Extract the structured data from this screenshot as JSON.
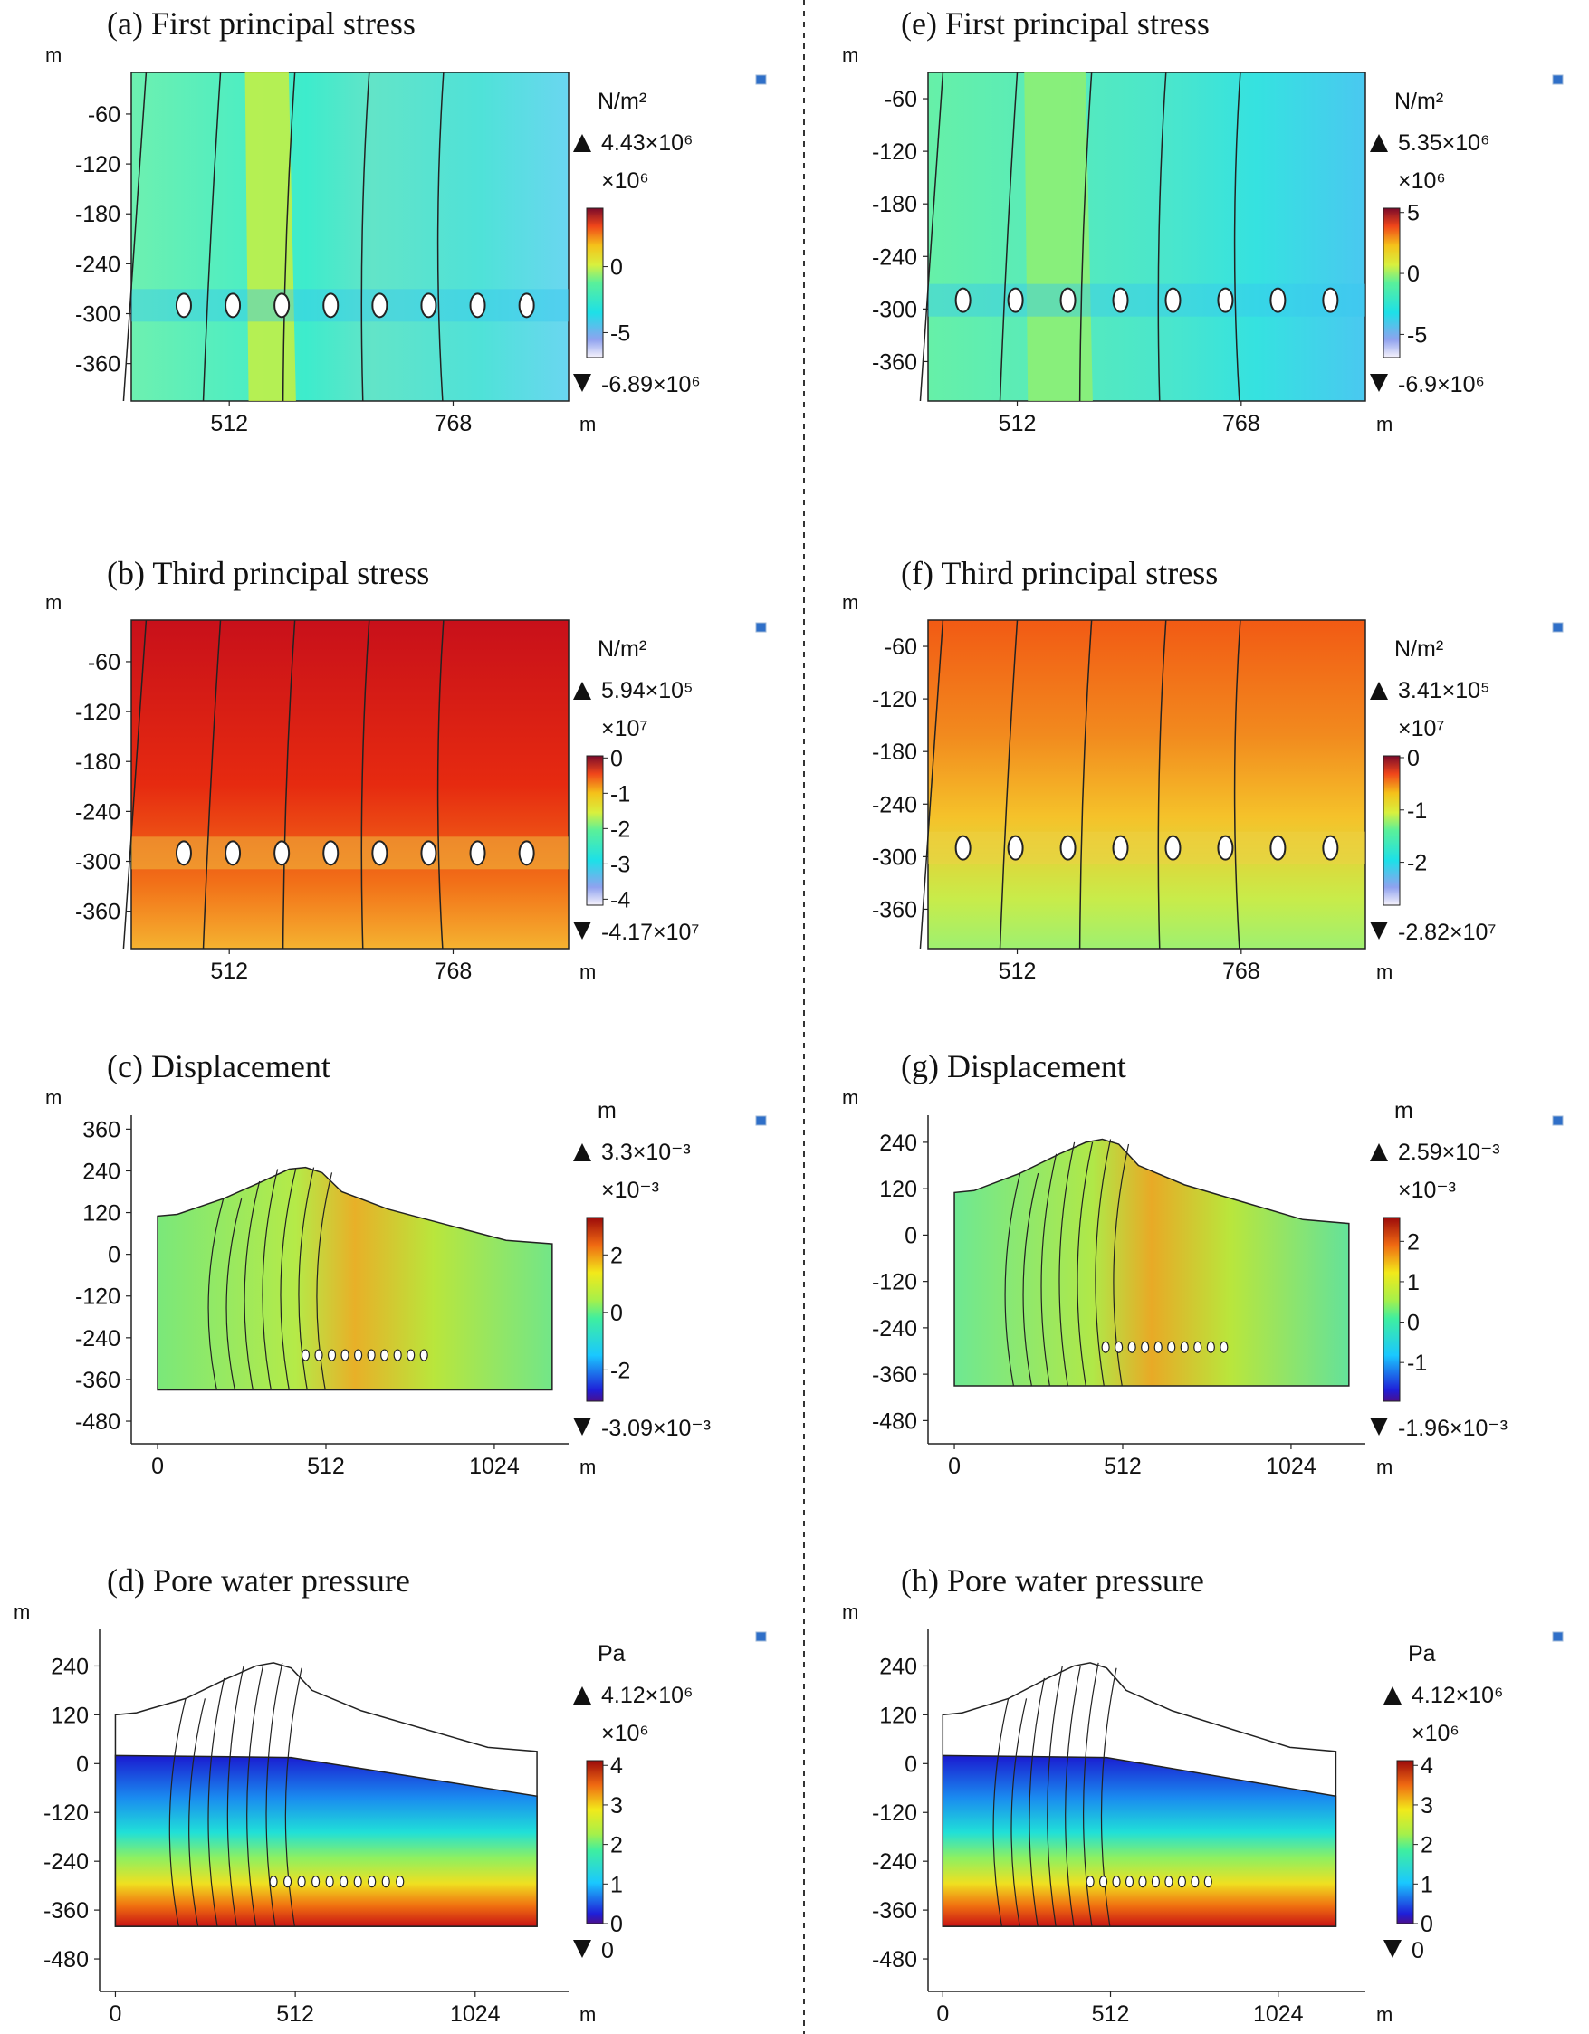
{
  "chart_data": [
    {
      "id": "a",
      "type": "heatmap",
      "title": "(a) First principal stress",
      "axis_unit": "m",
      "unit": "N/m²",
      "yticks": [
        -60,
        -120,
        -180,
        -240,
        -300,
        -360
      ],
      "ylim": [
        -405,
        -10
      ],
      "xticks": [
        512,
        768
      ],
      "xlim": [
        400,
        900
      ],
      "colorbar": {
        "multiplier": "×10⁶",
        "ticks": [
          0,
          -5
        ],
        "range": [
          -6.89,
          4.43
        ],
        "max_label": "4.43×10⁶",
        "min_label": "-6.89×10⁶"
      },
      "openings_x": [
        460,
        516,
        572,
        628,
        684,
        740,
        796,
        852
      ],
      "openings_y": -290,
      "colormap": "rainbow-light"
    },
    {
      "id": "e",
      "type": "heatmap",
      "title": "(e) First principal stress",
      "axis_unit": "m",
      "unit": "N/m²",
      "yticks": [
        -60,
        -120,
        -180,
        -240,
        -300,
        -360
      ],
      "ylim": [
        -405,
        -30
      ],
      "xticks": [
        512,
        768
      ],
      "xlim": [
        410,
        910
      ],
      "colorbar": {
        "multiplier": "×10⁶",
        "ticks": [
          5,
          0,
          -5
        ],
        "range": [
          -6.9,
          5.35
        ],
        "max_label": "5.35×10⁶",
        "min_label": "-6.9×10⁶"
      },
      "openings_x": [
        450,
        510,
        570,
        630,
        690,
        750,
        810,
        870
      ],
      "openings_y": -290,
      "colormap": "rainbow-light"
    },
    {
      "id": "b",
      "type": "heatmap",
      "title": "(b) Third principal stress",
      "axis_unit": "m",
      "unit": "N/m²",
      "yticks": [
        -60,
        -120,
        -180,
        -240,
        -300,
        -360
      ],
      "ylim": [
        -405,
        -10
      ],
      "xticks": [
        512,
        768
      ],
      "xlim": [
        400,
        900
      ],
      "colorbar": {
        "multiplier": "×10⁷",
        "ticks": [
          0,
          -1,
          -2,
          -3,
          -4
        ],
        "range": [
          -4.17,
          0.0594
        ],
        "max_label": "5.94×10⁵",
        "min_label": "-4.17×10⁷"
      },
      "openings_x": [
        460,
        516,
        572,
        628,
        684,
        740,
        796,
        852
      ],
      "openings_y": -290,
      "colormap": "rainbow-light"
    },
    {
      "id": "f",
      "type": "heatmap",
      "title": "(f) Third principal stress",
      "axis_unit": "m",
      "unit": "N/m²",
      "yticks": [
        -60,
        -120,
        -180,
        -240,
        -300,
        -360
      ],
      "ylim": [
        -405,
        -30
      ],
      "xticks": [
        512,
        768
      ],
      "xlim": [
        410,
        910
      ],
      "colorbar": {
        "multiplier": "×10⁷",
        "ticks": [
          0,
          -1,
          -2
        ],
        "range": [
          -2.82,
          0.0341
        ],
        "max_label": "3.41×10⁵",
        "min_label": "-2.82×10⁷"
      },
      "openings_x": [
        450,
        510,
        570,
        630,
        690,
        750,
        810,
        870
      ],
      "openings_y": -290,
      "colormap": "rainbow-light"
    },
    {
      "id": "c",
      "type": "heatmap",
      "title": "(c) Displacement",
      "axis_unit": "m",
      "unit": "m",
      "yticks": [
        360,
        240,
        120,
        0,
        -120,
        -240,
        -360,
        -480
      ],
      "ylim": [
        -545,
        400
      ],
      "xticks": [
        0,
        512,
        1024
      ],
      "xlim": [
        -80,
        1250
      ],
      "colorbar": {
        "multiplier": "×10⁻³",
        "ticks": [
          2,
          0,
          -2
        ],
        "range": [
          -3.09,
          3.3
        ],
        "max_label": "3.3×10⁻³",
        "min_label": "-3.09×10⁻³"
      },
      "surface": [
        [
          0,
          110
        ],
        [
          60,
          115
        ],
        [
          200,
          160
        ],
        [
          320,
          210
        ],
        [
          400,
          245
        ],
        [
          450,
          250
        ],
        [
          500,
          235
        ],
        [
          560,
          180
        ],
        [
          700,
          130
        ],
        [
          900,
          80
        ],
        [
          1060,
          40
        ],
        [
          1200,
          30
        ]
      ],
      "domain_bottom": -390,
      "domain_x": [
        0,
        1200
      ],
      "openings_x": [
        450,
        490,
        530,
        570,
        610,
        650,
        690,
        730,
        770,
        810
      ],
      "openings_y": -290,
      "colormap": "rainbow"
    },
    {
      "id": "g",
      "type": "heatmap",
      "title": "(g) Displacement",
      "axis_unit": "m",
      "unit": "m",
      "yticks": [
        240,
        120,
        0,
        -120,
        -240,
        -360,
        -480
      ],
      "ylim": [
        -540,
        310
      ],
      "xticks": [
        0,
        512,
        1024
      ],
      "xlim": [
        -80,
        1250
      ],
      "colorbar": {
        "multiplier": "×10⁻³",
        "ticks": [
          2,
          1,
          0,
          -1
        ],
        "range": [
          -1.96,
          2.59
        ],
        "max_label": "2.59×10⁻³",
        "min_label": "-1.96×10⁻³"
      },
      "surface": [
        [
          0,
          110
        ],
        [
          60,
          115
        ],
        [
          200,
          160
        ],
        [
          320,
          210
        ],
        [
          400,
          240
        ],
        [
          450,
          248
        ],
        [
          500,
          235
        ],
        [
          560,
          180
        ],
        [
          700,
          130
        ],
        [
          900,
          80
        ],
        [
          1060,
          40
        ],
        [
          1200,
          30
        ]
      ],
      "domain_bottom": -390,
      "domain_x": [
        0,
        1200
      ],
      "openings_x": [
        460,
        500,
        540,
        580,
        620,
        660,
        700,
        740,
        780,
        820
      ],
      "openings_y": -290,
      "colormap": "rainbow"
    },
    {
      "id": "d",
      "type": "heatmap",
      "title": "(d) Pore water pressure",
      "axis_unit": "m",
      "unit": "Pa",
      "yticks": [
        240,
        120,
        0,
        -120,
        -240,
        -360,
        -480
      ],
      "ylim": [
        -560,
        330
      ],
      "xticks": [
        0,
        512,
        1024
      ],
      "xlim": [
        -45,
        1290
      ],
      "colorbar": {
        "multiplier": "×10⁶",
        "ticks": [
          4,
          3,
          2,
          1,
          0
        ],
        "range": [
          0,
          4.12
        ],
        "max_label": "4.12×10⁶",
        "min_label": "0"
      },
      "surface": [
        [
          0,
          120
        ],
        [
          60,
          125
        ],
        [
          200,
          160
        ],
        [
          320,
          210
        ],
        [
          400,
          240
        ],
        [
          450,
          248
        ],
        [
          500,
          235
        ],
        [
          560,
          180
        ],
        [
          700,
          130
        ],
        [
          900,
          80
        ],
        [
          1060,
          40
        ],
        [
          1200,
          30
        ]
      ],
      "water_table": [
        [
          0,
          20
        ],
        [
          500,
          15
        ],
        [
          1200,
          -80
        ]
      ],
      "domain_bottom": -400,
      "domain_x": [
        0,
        1200
      ],
      "openings_x": [
        450,
        490,
        530,
        570,
        610,
        650,
        690,
        730,
        770,
        810
      ],
      "openings_y": -290,
      "colormap": "rainbow"
    },
    {
      "id": "h",
      "type": "heatmap",
      "title": "(h) Pore water pressure",
      "axis_unit": "m",
      "unit": "Pa",
      "yticks": [
        240,
        120,
        0,
        -120,
        -240,
        -360,
        -480
      ],
      "ylim": [
        -560,
        330
      ],
      "xticks": [
        0,
        512,
        1024
      ],
      "xlim": [
        -45,
        1290
      ],
      "colorbar": {
        "multiplier": "×10⁶",
        "ticks": [
          4,
          3,
          2,
          1,
          0
        ],
        "range": [
          0,
          4.12
        ],
        "max_label": "4.12×10⁶",
        "min_label": "0"
      },
      "surface": [
        [
          0,
          120
        ],
        [
          60,
          125
        ],
        [
          200,
          160
        ],
        [
          320,
          210
        ],
        [
          400,
          240
        ],
        [
          450,
          248
        ],
        [
          500,
          235
        ],
        [
          560,
          180
        ],
        [
          700,
          130
        ],
        [
          900,
          80
        ],
        [
          1060,
          40
        ],
        [
          1200,
          30
        ]
      ],
      "water_table": [
        [
          0,
          20
        ],
        [
          500,
          15
        ],
        [
          1200,
          -80
        ]
      ],
      "domain_bottom": -400,
      "domain_x": [
        0,
        1200
      ],
      "openings_x": [
        450,
        490,
        530,
        570,
        610,
        650,
        690,
        730,
        770,
        810
      ],
      "openings_y": -290,
      "colormap": "rainbow"
    }
  ]
}
